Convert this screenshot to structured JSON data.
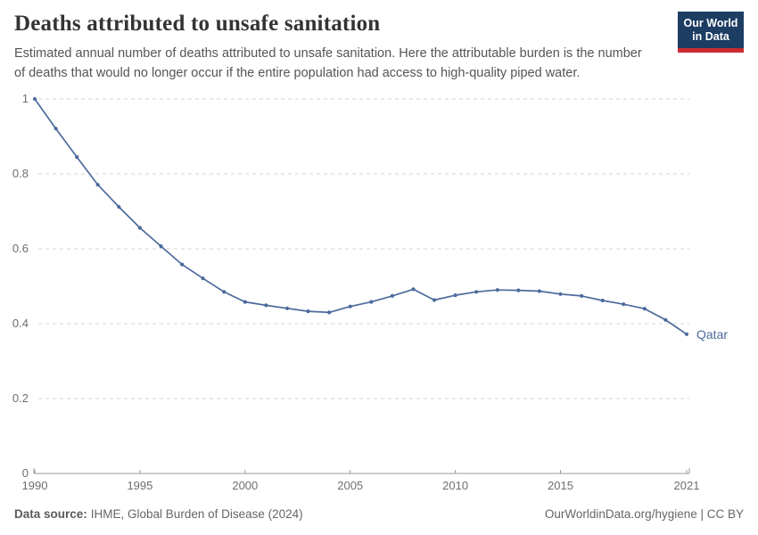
{
  "header": {
    "title": "Deaths attributed to unsafe sanitation",
    "subtitle_lines": [
      "Estimated annual number of deaths attributed to unsafe sanitation. Here the attributable burden is the number",
      "of deaths that would no longer occur if the entire population had access to high-quality piped water."
    ],
    "logo": {
      "line1": "Our World",
      "line2": "in Data",
      "bg": "#1d3d63",
      "accent": "#cb2b31"
    }
  },
  "chart_data": {
    "type": "line",
    "title": "Deaths attributed to unsafe sanitation",
    "xlabel": "",
    "ylabel": "",
    "xlim": [
      1990,
      2021
    ],
    "ylim": [
      0,
      1
    ],
    "grid": "dashed-horizontal",
    "legend_position": "end-of-line-label",
    "x_ticks": [
      1990,
      1995,
      2000,
      2005,
      2010,
      2015,
      2021
    ],
    "y_ticks": [
      0,
      0.2,
      0.4,
      0.6,
      0.8,
      1
    ],
    "y_tick_labels": [
      "0",
      "0.2",
      "0.4",
      "0.6",
      "0.8",
      "1"
    ],
    "grid_color": "#d6d6d6",
    "axis_color": "#9a9a9a",
    "tick_text_color": "#6e6e6e",
    "series": [
      {
        "name": "Qatar",
        "color": "#4c6a9c",
        "x": [
          1990,
          1991,
          1992,
          1993,
          1994,
          1995,
          1996,
          1997,
          1998,
          1999,
          2000,
          2001,
          2002,
          2003,
          2004,
          2005,
          2006,
          2007,
          2008,
          2009,
          2010,
          2011,
          2012,
          2013,
          2014,
          2015,
          2016,
          2017,
          2018,
          2019,
          2020,
          2021
        ],
        "values": [
          1.0,
          0.921,
          0.845,
          0.771,
          0.712,
          0.656,
          0.607,
          0.558,
          0.521,
          0.485,
          0.458,
          0.449,
          0.441,
          0.433,
          0.43,
          0.446,
          0.458,
          0.474,
          0.492,
          0.463,
          0.476,
          0.485,
          0.49,
          0.489,
          0.487,
          0.479,
          0.474,
          0.462,
          0.452,
          0.44,
          0.41,
          0.372
        ]
      }
    ]
  },
  "footer": {
    "source_label": "Data source:",
    "source_value": "IHME, Global Burden of Disease (2024)",
    "credit": "OurWorldinData.org/hygiene | CC BY"
  }
}
